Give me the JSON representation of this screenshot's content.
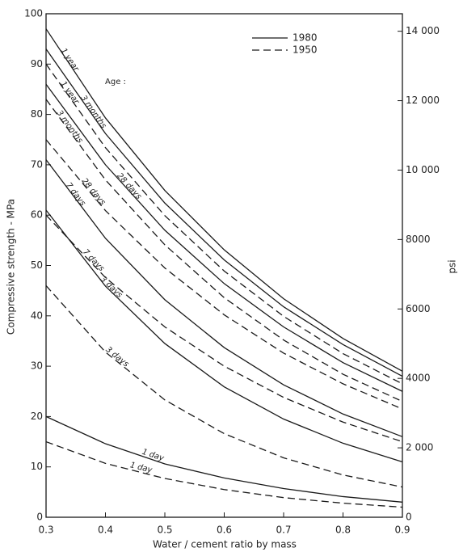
{
  "chart_data": {
    "type": "line",
    "x_label": "Water / cement ratio by mass",
    "y_label": "Compressive strength - MPa",
    "y2_label": "psi",
    "age_label": "Age :",
    "x": [
      0.3,
      0.4,
      0.5,
      0.6,
      0.7,
      0.8,
      0.9
    ],
    "xlim": [
      0.3,
      0.9
    ],
    "xticks": [
      0.3,
      0.4,
      0.5,
      0.6,
      0.7,
      0.8,
      0.9
    ],
    "ylim": [
      0,
      100
    ],
    "yticks": [
      0,
      10,
      20,
      30,
      40,
      50,
      60,
      70,
      80,
      90,
      100
    ],
    "y2lim": [
      0,
      14504
    ],
    "y2ticks": [
      0,
      {
        "value": 2000,
        "label": "2 000"
      },
      4000,
      6000,
      8000,
      {
        "value": 10000,
        "label": "10 000"
      },
      {
        "value": 12000,
        "label": "12 000"
      },
      {
        "value": 14000,
        "label": "14 000"
      }
    ],
    "legend": [
      {
        "label": "1980",
        "dash": "solid"
      },
      {
        "label": "1950",
        "dash": "dashed"
      }
    ],
    "color": "#1a1a1a",
    "series": [
      {
        "name": "1 year",
        "dash": "solid",
        "values": [
          97,
          79.3,
          64.9,
          53.1,
          43.4,
          35.5,
          29
        ]
      },
      {
        "name": "3 months",
        "dash": "solid",
        "values": [
          93,
          76.2,
          62.4,
          51.1,
          41.8,
          34.3,
          28
        ]
      },
      {
        "name": "1 year",
        "dash": "dashed",
        "values": [
          90,
          73.4,
          59.9,
          48.9,
          39.9,
          32.5,
          26.5
        ]
      },
      {
        "name": "28 days",
        "dash": "solid",
        "values": [
          86,
          70,
          57,
          46.4,
          37.8,
          30.7,
          25
        ]
      },
      {
        "name": "3 months",
        "dash": "dashed",
        "values": [
          83,
          67,
          54.1,
          43.6,
          35.2,
          28.4,
          23
        ]
      },
      {
        "name": "28 days",
        "dash": "dashed",
        "values": [
          75,
          60.9,
          49.5,
          40.2,
          32.6,
          26.5,
          21.5
        ]
      },
      {
        "name": "7 days",
        "dash": "solid",
        "values": [
          71,
          55.4,
          43.2,
          33.7,
          26.3,
          20.5,
          16
        ]
      },
      {
        "name": "7 days",
        "dash": "dashed",
        "values": [
          60,
          47.6,
          37.8,
          30,
          23.8,
          18.9,
          15
        ]
      },
      {
        "name": "3 days",
        "dash": "solid",
        "values": [
          61,
          45.9,
          34.5,
          25.9,
          19.5,
          14.7,
          11
        ]
      },
      {
        "name": "3 days",
        "dash": "dashed",
        "values": [
          46,
          32.8,
          23.3,
          16.6,
          11.8,
          8.4,
          6
        ]
      },
      {
        "name": "1 day",
        "dash": "solid",
        "values": [
          20,
          14.6,
          10.6,
          7.8,
          5.7,
          4.1,
          3
        ]
      },
      {
        "name": "1 day",
        "dash": "dashed",
        "values": [
          15,
          10.7,
          7.7,
          5.5,
          3.9,
          2.8,
          2
        ]
      }
    ]
  }
}
